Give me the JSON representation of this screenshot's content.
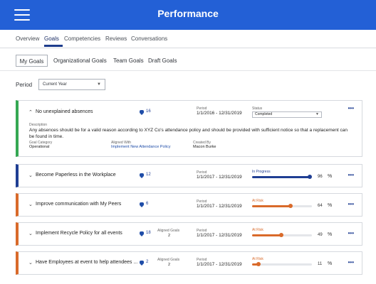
{
  "app": {
    "title": "Performance"
  },
  "nav": {
    "items": [
      {
        "label": "Overview"
      },
      {
        "label": "Goals"
      },
      {
        "label": "Competencies"
      },
      {
        "label": "Reviews"
      },
      {
        "label": "Conversations"
      }
    ],
    "active": "Goals"
  },
  "subtabs": {
    "items": [
      {
        "label": "My Goals"
      },
      {
        "label": "Organizational Goals"
      },
      {
        "label": "Team Goals"
      },
      {
        "label": "Draft Goals"
      }
    ],
    "selected": "My Goals"
  },
  "period": {
    "label": "Period",
    "value": "Current Year"
  },
  "labels": {
    "period": "Period",
    "status": "Status",
    "description": "Description",
    "goal_category": "Goal Category",
    "aligned_with": "Aligned With",
    "created_by": "Created By",
    "aligned_goals": "Aligned Goals",
    "percent": "%",
    "more": "•••"
  },
  "goals": [
    {
      "title": "No unexplained absences",
      "comments": "16",
      "period": "1/1/2016 - 12/31/2019",
      "status": "Completed",
      "description": "Any absences should be for a valid reason according to XYZ Co's attendance policy and should be provided with sufficient notice so that a replacement can be found in time.",
      "goal_category": "Operational",
      "aligned_with": "Implement New Attendance Policy",
      "created_by": "Macon Burke",
      "accent": "#35a853"
    },
    {
      "title": "Become Paperless in the Workplace",
      "comments": "12",
      "period": "1/1/2017 - 12/31/2019",
      "status": "In Progress",
      "progress": 96,
      "progress_text": "96",
      "accent": "#1f3e93"
    },
    {
      "title": "Improve communication with My Peers",
      "comments": "6",
      "period": "1/1/2017 - 12/31/2019",
      "status": "At Risk",
      "progress": 64,
      "progress_text": "64",
      "accent": "#d96a2a"
    },
    {
      "title": "Implement Recycle Policy for all events",
      "comments": "18",
      "aligned_goals": "2",
      "period": "1/1/2017 - 12/31/2019",
      "status": "At Risk",
      "progress": 49,
      "progress_text": "49",
      "accent": "#d96a2a"
    },
    {
      "title": "Have Employees at event to help attendees ...",
      "comments": "2",
      "aligned_goals": "2",
      "period": "1/1/2017 - 12/31/2019",
      "status": "At Risk",
      "progress": 11,
      "progress_text": "11",
      "accent": "#d96a2a"
    }
  ]
}
